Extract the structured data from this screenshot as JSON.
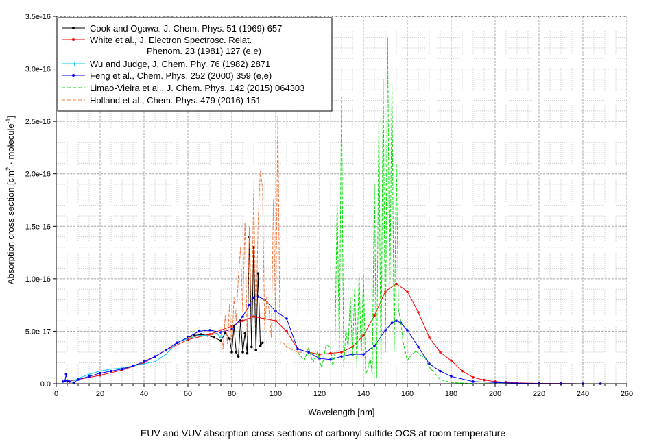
{
  "caption": "EUV and VUV absorption cross sections of carbonyl sulfide OCS at room temperature",
  "chart_data": {
    "type": "line",
    "title": "",
    "xlabel": "Wavelength [nm]",
    "ylabel_main": "Absorption cross section [cm",
    "ylabel_sup1": "2",
    "ylabel_mid": " · molecule",
    "ylabel_sup2": "-1",
    "ylabel_end": "]",
    "xlim": [
      0,
      260
    ],
    "ylim": [
      0,
      3.5e-16
    ],
    "x_ticks": [
      0,
      20,
      40,
      60,
      80,
      100,
      120,
      140,
      160,
      180,
      200,
      220,
      240,
      260
    ],
    "x_tick_labels": [
      "0",
      "20",
      "40",
      "60",
      "80",
      "100",
      "120",
      "140",
      "160",
      "180",
      "200",
      "220",
      "240",
      "260"
    ],
    "y_ticks": [
      0,
      5e-17,
      1e-16,
      1.5e-16,
      2e-16,
      2.5e-16,
      3e-16,
      3.5e-16
    ],
    "y_tick_labels": [
      "0.0",
      "5.0e-17",
      "1.0e-16",
      "1.5e-16",
      "2.0e-16",
      "2.5e-16",
      "3.0e-16",
      "3.5e-16"
    ],
    "grid": true,
    "legend_position": "top-left",
    "series": [
      {
        "name": "Cook and Ogawa, J. Chem. Phys. 51 (1969) 657",
        "color": "#000000",
        "style": "solid-marker",
        "x": [
          60,
          63,
          66,
          69,
          72,
          75,
          77,
          79,
          80,
          81,
          82,
          83,
          84,
          85,
          86,
          87,
          88,
          89,
          90,
          91,
          92,
          93,
          94
        ],
        "y": [
          4.4e-17,
          4.6e-17,
          4.7e-17,
          4.6e-17,
          4.4e-17,
          4.1e-17,
          4.8e-17,
          4.3e-17,
          3e-17,
          5.5e-17,
          3e-17,
          2.6e-17,
          6e-17,
          3e-17,
          4.8e-17,
          2.9e-17,
          1.4e-16,
          3.5e-17,
          1.3e-16,
          3.2e-17,
          1.05e-16,
          3.6e-17,
          3.9e-17
        ]
      },
      {
        "name_line1": "White et al., J. Electron Spectrosc. Relat.",
        "name_line2": "Phenom. 23 (1981) 127 (e,e)",
        "color": "#ff0000",
        "style": "solid-marker",
        "x": [
          5,
          10,
          20,
          30,
          40,
          50,
          60,
          70,
          80,
          85,
          90,
          95,
          100,
          105,
          110,
          115,
          120,
          125,
          130,
          135,
          140,
          145,
          150,
          155,
          160,
          165,
          170,
          175,
          180,
          185,
          190,
          195,
          200,
          205,
          210,
          220,
          230,
          240,
          248
        ],
        "y": [
          2e-18,
          4e-18,
          8e-18,
          1.3e-17,
          2e-17,
          3.2e-17,
          4.2e-17,
          4.7e-17,
          5.5e-17,
          6e-17,
          6.4e-17,
          6.2e-17,
          6e-17,
          5e-17,
          3.3e-17,
          3e-17,
          2.8e-17,
          2.9e-17,
          3e-17,
          3.5e-17,
          4.6e-17,
          6.5e-17,
          8.8e-17,
          9.5e-17,
          8.8e-17,
          6.8e-17,
          4.4e-17,
          3e-17,
          2.2e-17,
          1.2e-17,
          6e-18,
          3.5e-18,
          2e-18,
          1.4e-18,
          8e-19,
          3e-19,
          1e-19,
          0,
          0
        ]
      },
      {
        "name": "Wu and Judge, J. Chem. Phy. 76 (1982) 2871",
        "color": "#00c8ff",
        "style": "solid-marker",
        "x": [
          8,
          10,
          15,
          20,
          25,
          30,
          35,
          40,
          45,
          50,
          55,
          60,
          65,
          70,
          73,
          75,
          77
        ],
        "y": [
          3e-18,
          5e-18,
          9e-18,
          1.2e-17,
          1.4e-17,
          1.5e-17,
          1.7e-17,
          1.9e-17,
          2.1e-17,
          2.8e-17,
          3.9e-17,
          4.3e-17,
          4.6e-17,
          4.6e-17,
          4.8e-17,
          4.4e-17,
          4.7e-17
        ]
      },
      {
        "name": "Feng et al., Chem. Phys. 252 (2000) 359 (e,e)",
        "color": "#0000ff",
        "style": "solid-marker",
        "x": [
          3,
          4,
          4.5,
          5,
          6,
          8,
          10,
          15,
          20,
          25,
          30,
          35,
          40,
          45,
          50,
          55,
          60,
          65,
          70,
          75,
          80,
          85,
          88,
          90,
          92,
          95,
          100,
          105,
          110,
          115,
          120,
          125,
          130,
          135,
          140,
          145,
          150,
          153,
          155,
          157,
          160,
          165,
          170,
          175,
          180,
          190,
          200,
          210,
          220,
          230,
          240,
          248
        ],
        "y": [
          2e-18,
          3e-18,
          9e-18,
          3e-18,
          2e-18,
          1e-18,
          4e-18,
          7e-18,
          1e-17,
          1.2e-17,
          1.4e-17,
          1.7e-17,
          2.1e-17,
          2.6e-17,
          3.2e-17,
          3.9e-17,
          4.4e-17,
          5e-17,
          5.1e-17,
          4.9e-17,
          5.2e-17,
          6.4e-17,
          7.5e-17,
          8.2e-17,
          8.3e-17,
          8e-17,
          6.9e-17,
          6.2e-17,
          3.3e-17,
          3e-17,
          2.4e-17,
          2.3e-17,
          2.6e-17,
          2.8e-17,
          2.8e-17,
          3.6e-17,
          5.1e-17,
          5.8e-17,
          6e-17,
          5.8e-17,
          5.1e-17,
          3.5e-17,
          1.9e-17,
          1.2e-17,
          7e-18,
          2e-18,
          1.2e-18,
          5e-19,
          2e-19,
          1e-19,
          0,
          0
        ]
      },
      {
        "name": "Limao-Vieira et al., J. Chem. Phys. 142 (2015) 064303",
        "color": "#00dd00",
        "style": "dashed",
        "x": [
          110,
          113,
          115,
          117,
          119,
          121,
          123,
          125,
          126,
          127,
          128,
          129,
          130,
          131,
          132,
          133,
          134,
          135,
          136,
          137,
          138,
          139,
          140,
          141,
          142,
          143,
          144,
          145,
          146,
          147,
          148,
          149,
          150,
          151,
          152,
          153,
          154,
          155,
          156,
          157,
          158,
          160,
          162,
          164,
          166,
          168,
          170,
          175,
          180,
          190,
          200,
          210,
          220,
          230,
          240,
          250
        ],
        "y": [
          3e-17,
          2.2e-17,
          3.4e-17,
          2e-17,
          3e-17,
          1.5e-17,
          3.7e-17,
          3.5e-17,
          1.7e-17,
          2.9e-17,
          1.75e-16,
          3e-17,
          2.73e-16,
          1.6e-17,
          5.2e-17,
          3.4e-17,
          8.3e-17,
          2.6e-17,
          9.1e-17,
          1.6e-17,
          1.06e-16,
          2.5e-17,
          1.04e-16,
          9e-18,
          1.4e-17,
          2.5e-17,
          9e-18,
          1.9e-16,
          5e-18,
          2.5e-16,
          1.2e-17,
          2.9e-16,
          3e-17,
          3.3e-16,
          8e-17,
          2.85e-16,
          3e-17,
          2.1e-16,
          7e-17,
          6e-17,
          4e-17,
          2.2e-17,
          2.8e-17,
          3.1e-17,
          2.7e-17,
          2.5e-17,
          1.6e-17,
          4e-18,
          1e-18,
          2e-19,
          1e-19,
          0,
          0,
          0,
          0,
          0
        ]
      },
      {
        "name": "Holland et al., Chem. Phys. 479 (2016) 151",
        "color": "#f07840",
        "style": "dashed",
        "x": [
          60,
          65,
          70,
          73,
          75,
          76,
          77,
          78,
          79,
          80,
          81,
          82,
          83,
          84,
          85,
          86,
          87,
          88,
          89,
          90,
          91,
          92,
          93,
          94,
          95,
          96,
          97,
          98,
          99,
          100,
          101,
          102,
          103,
          105,
          108,
          110,
          112
        ],
        "y": [
          4.4e-17,
          4.5e-17,
          4.6e-17,
          4.8e-17,
          5.2e-17,
          3.3e-17,
          6.5e-17,
          3.8e-17,
          7.6e-17,
          3.2e-17,
          8.2e-17,
          6e-17,
          1.02e-16,
          1.3e-16,
          6.8e-17,
          1.54e-16,
          4.5e-17,
          1.49e-16,
          6e-17,
          1.85e-16,
          5e-17,
          1.55e-16,
          2.03e-16,
          1.86e-16,
          5.1e-17,
          8.4e-17,
          7e-17,
          4.4e-17,
          1.76e-16,
          5.5e-17,
          2.55e-16,
          3.8e-17,
          4e-17,
          3.5e-17,
          3.2e-17,
          3e-17,
          3e-17
        ]
      }
    ]
  }
}
